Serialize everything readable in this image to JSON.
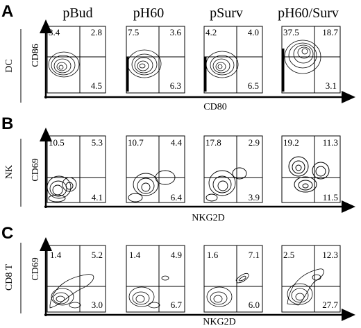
{
  "columns": [
    "pBud",
    "pH60",
    "pSurv",
    "pH60/Surv"
  ],
  "rows": [
    {
      "letter": "A",
      "row_label": "DC",
      "y_label": "CD86",
      "x_label": "CD80",
      "plots": [
        {
          "ul": "3.4",
          "ur": "2.8",
          "lr": "4.5"
        },
        {
          "ul": "7.5",
          "ur": "3.6",
          "lr": "6.3"
        },
        {
          "ul": "4.2",
          "ur": "4.0",
          "lr": "6.5"
        },
        {
          "ul": "37.5",
          "ur": "18.7",
          "lr": "3.1"
        }
      ]
    },
    {
      "letter": "B",
      "row_label": "NK",
      "y_label": "CD69",
      "x_label": "NKG2D",
      "plots": [
        {
          "ul": "10.5",
          "ur": "5.3",
          "lr": "4.1"
        },
        {
          "ul": "10.7",
          "ur": "4.4",
          "lr": "6.4"
        },
        {
          "ul": "17.8",
          "ur": "2.9",
          "lr": "3.9"
        },
        {
          "ul": "19.2",
          "ur": "11.3",
          "lr": "11.5"
        }
      ]
    },
    {
      "letter": "C",
      "row_label": "CD8 T",
      "y_label": "CD69",
      "x_label": "NKG2D",
      "plots": [
        {
          "ul": "1.4",
          "ur": "5.2",
          "lr": "3.0"
        },
        {
          "ul": "1.4",
          "ur": "4.9",
          "lr": "6.7"
        },
        {
          "ul": "1.6",
          "ur": "7.1",
          "lr": "6.0"
        },
        {
          "ul": "2.5",
          "ur": "12.3",
          "lr": "27.7"
        }
      ]
    }
  ]
}
